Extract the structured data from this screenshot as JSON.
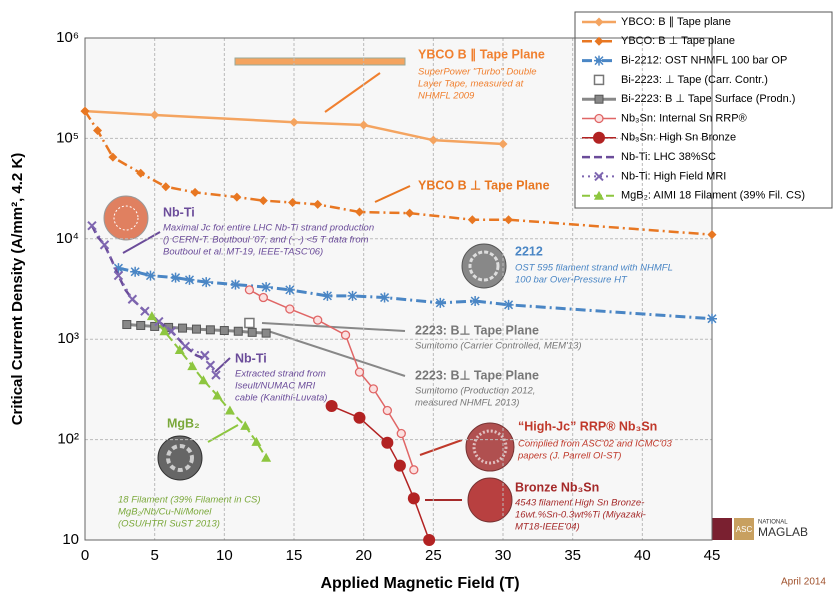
{
  "chart_data": {
    "type": "line",
    "xlabel": "Applied Magnetic Field (T)",
    "ylabel": "Critical Current Density (A/mm², 4.2 K)",
    "xlim": [
      0,
      45
    ],
    "xticks": [
      0,
      5,
      10,
      15,
      20,
      25,
      30,
      35,
      40,
      45
    ],
    "ylim": [
      10,
      1000000
    ],
    "log_y": true,
    "yticks": [
      10,
      {
        "value": 100,
        "label": "10²"
      },
      {
        "value": 1000,
        "label": "10³"
      },
      {
        "value": 10000,
        "label": "10⁴"
      },
      {
        "value": 100000,
        "label": "10⁵"
      },
      {
        "value": 1000000,
        "label": "10⁶"
      }
    ],
    "grid": true,
    "legend": "upper right",
    "series": [
      {
        "name": "YBCO: B ∥ Tape plane",
        "color": "#f4a460",
        "marker": "diamond",
        "dash": "solid",
        "width": 2.5,
        "x": [
          0,
          5,
          15,
          20,
          25,
          30
        ],
        "values": [
          187000,
          171000,
          145000,
          136000,
          96000,
          88000
        ]
      },
      {
        "name": "YBCO: B ⊥ Tape plane",
        "color": "#e87722",
        "marker": "diamond",
        "dash": "dashdot",
        "width": 2.5,
        "x": [
          0,
          0.9,
          2,
          4,
          5.8,
          7.9,
          10.9,
          12.8,
          14.9,
          16.7,
          19.7,
          23.3,
          27.8,
          30.4,
          45
        ],
        "values": [
          187000,
          120000,
          65000,
          45000,
          33000,
          29000,
          26000,
          24000,
          23000,
          22000,
          18500,
          18000,
          15500,
          15500,
          11000
        ]
      },
      {
        "name": "Bi-2212: OST NHMFL 100 bar OP",
        "color": "#4a86c5",
        "marker": "asterisk",
        "dash": "dashdot",
        "width": 3,
        "x": [
          2.4,
          3.6,
          4.7,
          6.5,
          7.5,
          8.7,
          10.8,
          13,
          14.7,
          17.4,
          19.2,
          21.5,
          25.5,
          28,
          30.4,
          45
        ],
        "values": [
          5100,
          4700,
          4300,
          4100,
          3900,
          3700,
          3500,
          3300,
          3100,
          2700,
          2700,
          2600,
          2300,
          2400,
          2200,
          1600
        ]
      },
      {
        "name": "Bi-2223: ⊥ Tape (Carr. Contr.)",
        "color": "#777777",
        "marker": "square-open",
        "dash": "none",
        "width": 0,
        "x": [
          11.8
        ],
        "values": [
          1450
        ]
      },
      {
        "name": "Bi-2223: B ⊥ Tape Surface (Prodn.)",
        "color": "#888888",
        "marker": "square",
        "dash": "solid",
        "width": 3,
        "x": [
          3,
          4,
          5,
          6,
          7,
          8,
          9,
          10,
          11,
          12,
          13
        ],
        "values": [
          1400,
          1370,
          1340,
          1310,
          1290,
          1260,
          1240,
          1220,
          1200,
          1170,
          1150
        ]
      },
      {
        "name": "Nb₃Sn: Internal Sn RRP®",
        "color": "#e06666",
        "marker": "circle-open",
        "dash": "solid",
        "width": 1.5,
        "x": [
          11.8,
          12.8,
          14.7,
          16.7,
          18.7,
          19.7,
          20.7,
          21.7,
          22.7,
          23.6
        ],
        "values": [
          3100,
          2600,
          2000,
          1550,
          1100,
          470,
          320,
          195,
          115,
          50
        ]
      },
      {
        "name": "Nb₃Sn: High Sn Bronze",
        "color": "#b22222",
        "marker": "circle",
        "dash": "solid",
        "width": 1.5,
        "x": [
          17.7,
          19.7,
          21.7,
          22.6,
          23.6,
          24.7
        ],
        "values": [
          216,
          165,
          93,
          55,
          26,
          10
        ]
      },
      {
        "name": "Nb-Ti: LHC 38%SC",
        "color": "#6b4c9a",
        "marker": "none",
        "dash": "dashed",
        "width": 2.5,
        "x": [
          0.5,
          0.9,
          1.4,
          1.9,
          2.4,
          2.9,
          3.4,
          4.3,
          5.3,
          6.2,
          7.2,
          8,
          8.6
        ],
        "values": [
          13500,
          10500,
          8700,
          6200,
          4300,
          3100,
          2500,
          1900,
          1500,
          1200,
          850,
          690,
          640
        ]
      },
      {
        "name": "Nb-Ti: High Field MRI",
        "color": "#7e66b0",
        "marker": "x",
        "dash": "dotted",
        "width": 2,
        "x": [
          0.5,
          1.4,
          2.4,
          3.4,
          4.3,
          5.3,
          6.2,
          7.2,
          8.6,
          9,
          9.4
        ],
        "values": [
          13500,
          8700,
          4300,
          2500,
          1900,
          1500,
          1200,
          850,
          690,
          550,
          440
        ]
      },
      {
        "name": "MgB₂: AIMI 18 Filament (39% Fil. CS)",
        "color": "#8dc63f",
        "marker": "triangle",
        "dash": "dashed",
        "width": 2,
        "x": [
          4.8,
          5.7,
          6.8,
          7.7,
          8.5,
          9.5,
          10.4,
          11.5,
          12.3,
          13
        ],
        "values": [
          1700,
          1200,
          780,
          540,
          390,
          275,
          195,
          137,
          95,
          66
        ]
      }
    ],
    "annotations": [
      {
        "title": "YBCO B ∥ Tape Plane",
        "color": "#f08030",
        "lines": [
          "SuperPower \"Turbo\" Double",
          "Layer Tape, measured at",
          "NHMFL 2009"
        ]
      },
      {
        "title": "YBCO B ⊥ Tape Plane",
        "color": "#e87722",
        "lines": []
      },
      {
        "title": "Nb-Ti",
        "color": "#6b4c9a",
        "lines": [
          "Maximal Jc for entire LHC Nb-Ti strand production",
          "() CERN-T. Boutboul '07, and (- -) <5 T data from",
          "Boutboul et al. MT-19, IEEE-TASC'06)"
        ]
      },
      {
        "title": "2212",
        "color": "#4a86c5",
        "lines": [
          "OST 595 filament strand with NHMFL",
          "100 bar Over-Pressure HT"
        ]
      },
      {
        "title": "2223: B⊥ Tape Plane",
        "color": "#777777",
        "lines": [
          "Sumitomo (Carrier Controlled, MEM'13)"
        ]
      },
      {
        "title": "2223: B⊥ Tape Plane",
        "color": "#777777",
        "lines": [
          "Sumitomo (Production 2012,",
          "measured NHMFL 2013)"
        ]
      },
      {
        "title": "Nb-Ti",
        "color": "#6b4c9a",
        "lines": [
          "Extracted strand from",
          "Iseult/NUMAC MRI",
          "cable (Kanithi-Luvata)"
        ]
      },
      {
        "title": "MgB₂",
        "color": "#7aa83a",
        "lines": []
      },
      {
        "lines": [
          "18 Filament (39% Filament in CS)",
          "MgB₂/Nb/Cu-Ni/Monel",
          "(OSU/HTRI SuST 2013)"
        ],
        "color": "#7aa83a"
      },
      {
        "title": "“High-Jc” RRP® Nb₃Sn",
        "color": "#c0392b",
        "lines": [
          "Complied from ASC'02 and ICMC'03",
          "papers (J. Parrell OI-ST)"
        ]
      },
      {
        "title": "Bronze Nb₃Sn",
        "color": "#a52a2a",
        "lines": [
          "4543 filament High Sn Bronze-",
          "16wt.%Sn-0.3wt%Ti (Miyazaki-",
          "MT18-IEEE'04)"
        ]
      }
    ],
    "footnote": "April 2014",
    "logo_text": [
      "ASC",
      "NATIONAL",
      "MAGLAB"
    ]
  }
}
